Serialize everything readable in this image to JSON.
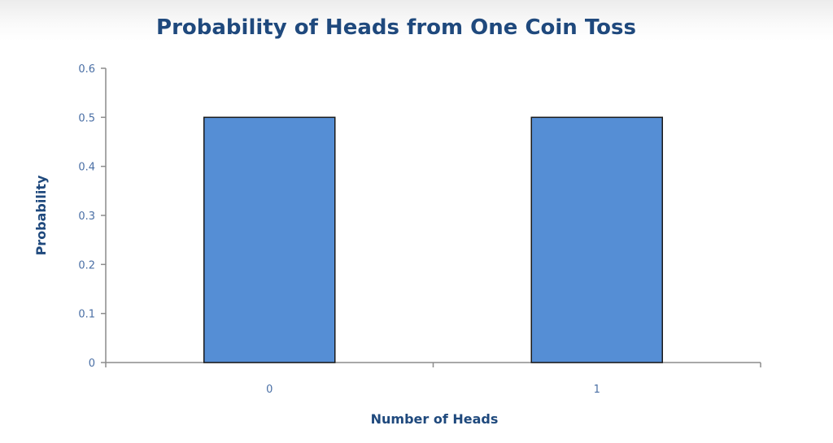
{
  "chart_data": {
    "type": "bar",
    "title": "Probability of Heads from One Coin Toss",
    "xlabel": "Number of Heads",
    "ylabel": "Probability",
    "categories": [
      "0",
      "1"
    ],
    "values": [
      0.5,
      0.5
    ],
    "ylim": [
      0,
      0.6
    ],
    "yticks": [
      "0",
      "0.1",
      "0.2",
      "0.3",
      "0.4",
      "0.5",
      "0.6"
    ],
    "grid": false,
    "legend": "none",
    "bar_color": "#558ed5",
    "bar_edge_color": "#1a1a1a"
  }
}
